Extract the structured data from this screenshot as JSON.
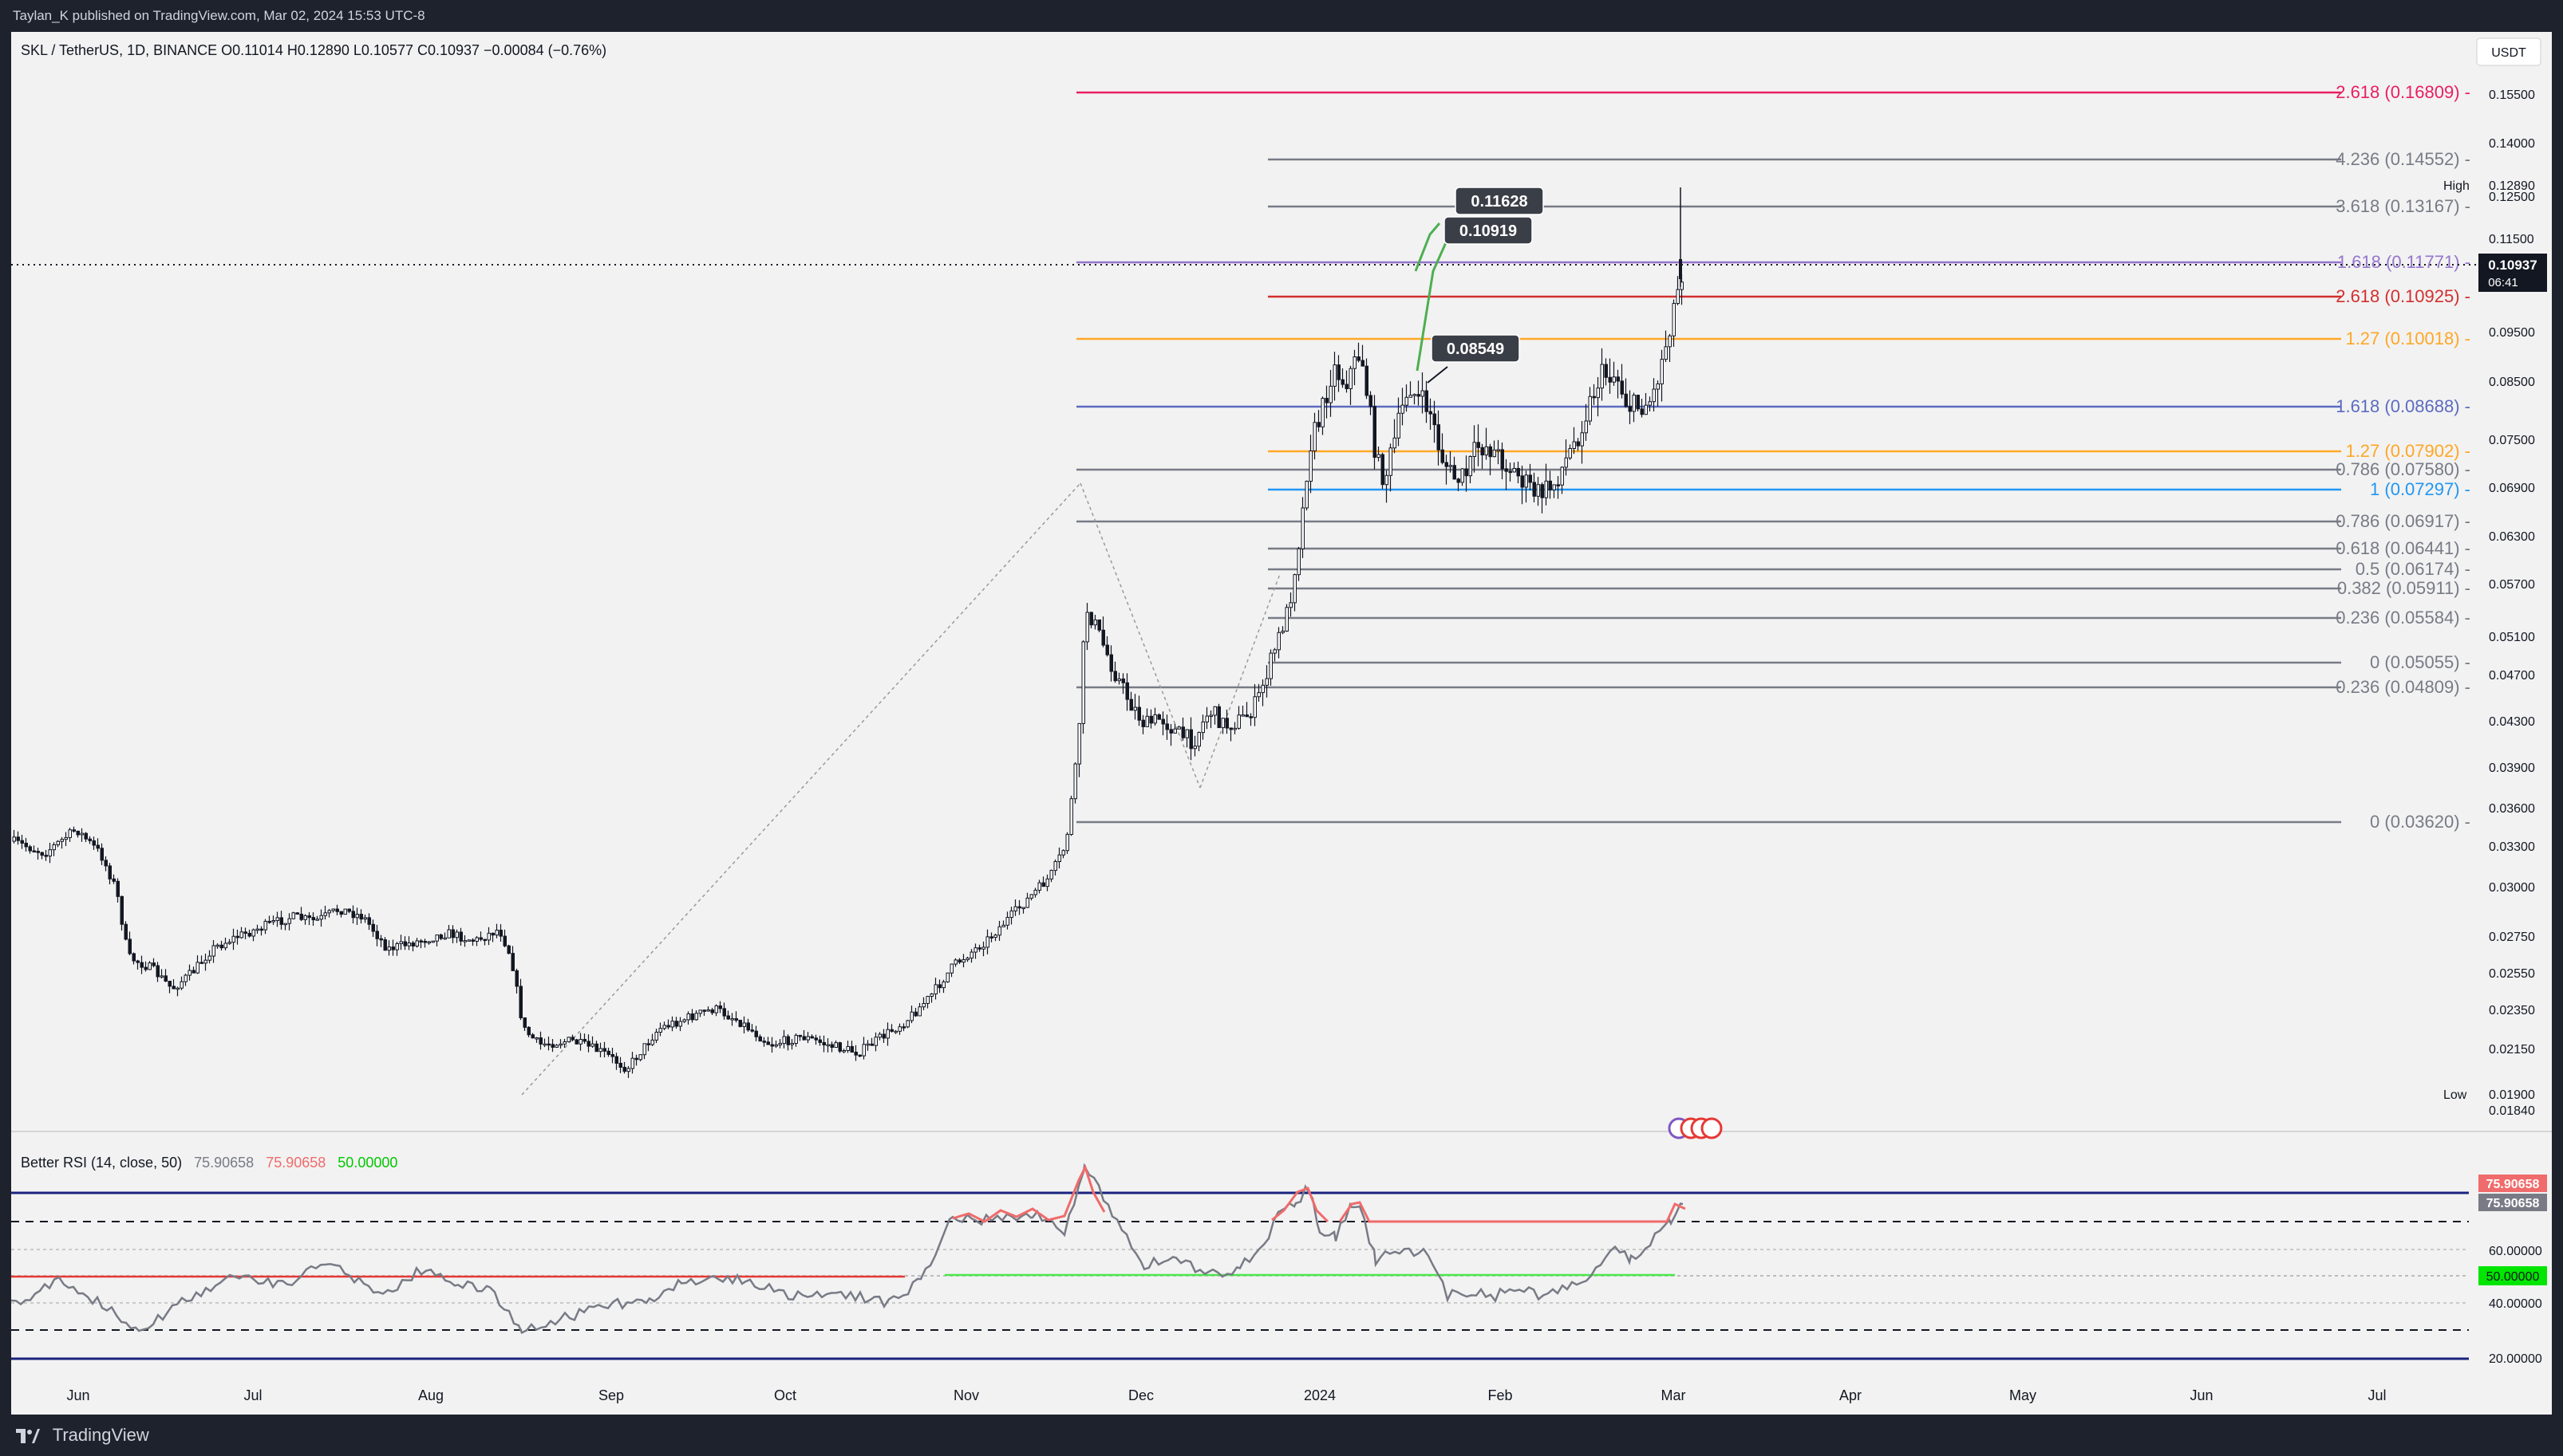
{
  "header": {
    "publish_line": "Taylan_K published on TradingView.com, Mar 02, 2024 15:53 UTC-8"
  },
  "symbol_line": "SKL / TetherUS, 1D, BINANCE  O0.11014  H0.12890  L0.10577  C0.10937  −0.00084 (−0.76%)",
  "currency": "USDT",
  "price_axis": {
    "ticks": [
      "0.15500",
      "0.14000",
      "0.12500",
      "0.11500",
      "0.09500",
      "0.08500",
      "0.07500",
      "0.06900",
      "0.06300",
      "0.05700",
      "0.05100",
      "0.04700",
      "0.04300",
      "0.03900",
      "0.03600",
      "0.03300",
      "0.03000",
      "0.02750",
      "0.02550",
      "0.02350",
      "0.02150",
      "0.01900",
      "0.01840"
    ],
    "high_label": "High",
    "high_value": "0.12890",
    "low_label": "Low",
    "low_value": "0.01900",
    "last_price": "0.10937",
    "countdown": "06:41"
  },
  "time_axis": [
    "Jun",
    "Jul",
    "Aug",
    "Sep",
    "Oct",
    "Nov",
    "Dec",
    "2024",
    "Feb",
    "Mar",
    "Apr",
    "May",
    "Jun",
    "Jul"
  ],
  "fib_levels": [
    {
      "text": "2.618 (0.16809)",
      "color": "#e91e63"
    },
    {
      "text": "4.236 (0.14552)",
      "color": "#787b86"
    },
    {
      "text": "3.618 (0.13167)",
      "color": "#787b86"
    },
    {
      "text": "1.618 (0.11771)",
      "color": "#9575cd"
    },
    {
      "text": "2.618 (0.10925)",
      "color": "#d32f2f"
    },
    {
      "text": "1.27 (0.10018)",
      "color": "#ffa726"
    },
    {
      "text": "1.618 (0.08688)",
      "color": "#5c6bc0"
    },
    {
      "text": "1.27 (0.07902)",
      "color": "#ffa726"
    },
    {
      "text": "0.786 (0.07580)",
      "color": "#787b86"
    },
    {
      "text": "1 (0.07297)",
      "color": "#2196f3"
    },
    {
      "text": "0.786 (0.06917)",
      "color": "#787b86"
    },
    {
      "text": "0.618 (0.06441)",
      "color": "#787b86"
    },
    {
      "text": "0.5 (0.06174)",
      "color": "#787b86"
    },
    {
      "text": "0.382 (0.05911)",
      "color": "#787b86"
    },
    {
      "text": "0.236 (0.05584)",
      "color": "#787b86"
    },
    {
      "text": "0 (0.05055)",
      "color": "#787b86"
    },
    {
      "text": "0.236 (0.04809)",
      "color": "#787b86"
    },
    {
      "text": "0 (0.03620)",
      "color": "#787b86"
    }
  ],
  "annotations": [
    "0.11628",
    "0.10919",
    "0.08549"
  ],
  "rsi": {
    "title": "Better RSI (14, close, 50)",
    "v1": "75.90658",
    "v2": "75.90658",
    "v3": "50.00000",
    "ticks": [
      "60.00000",
      "40.00000",
      "20.00000"
    ],
    "badge_red": "75.90658",
    "badge_gray": "75.90658",
    "badge_green": "50.00000"
  },
  "footer": {
    "brand": "TradingView"
  },
  "colors": {
    "background": "#f2f2f2",
    "candle": "#131722",
    "rsi_line": "#787b86",
    "rsi_overbought": "#f06b6b",
    "rsi_mid": "#00e600",
    "band": "#1a237e"
  }
}
